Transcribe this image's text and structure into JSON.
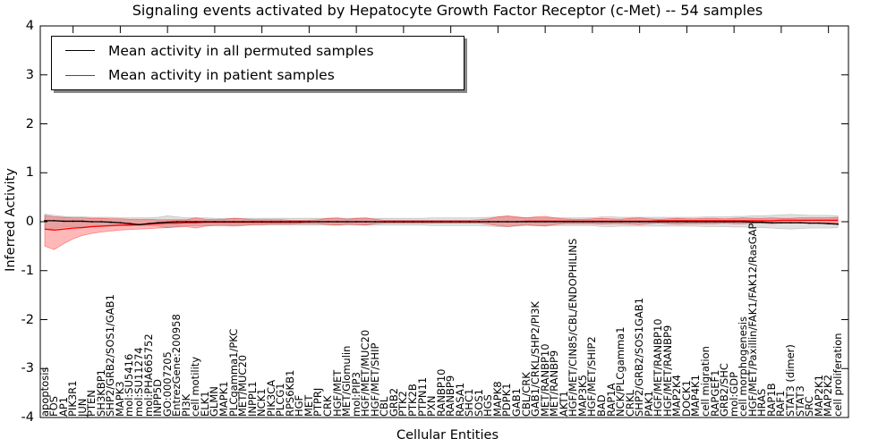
{
  "chart_data": {
    "type": "line",
    "title": "Signaling events activated by Hepatocyte Growth Factor Receptor (c-Met) -- 54 samples",
    "xlabel": "Cellular Entities",
    "ylabel": "Inferred Activity",
    "ylim": [
      -4,
      4
    ],
    "yticks": [
      -4,
      -3,
      -2,
      -1,
      0,
      1,
      2,
      3,
      4
    ],
    "grid": false,
    "legend_position": "upper left",
    "categories": [
      "apoptosis",
      "FOS",
      "AP1",
      "PIK3R1",
      "JUN",
      "PTEN",
      "SH3KBP1",
      "SHP2/GRB2/SOS1/GAB1",
      "MAPK3",
      "mol:SU5416",
      "mol:SU11274",
      "mol:PHA665752",
      "INPP5D",
      "GO:0007205",
      "EntrezGene:200958",
      "PI3K",
      "cell motility",
      "ELK1",
      "GLMN",
      "MAPK1",
      "PLCgamma1/PKC",
      "MET/MUC20",
      "INPPL1",
      "NCK1",
      "PIK3CA",
      "PLCG1",
      "RPS6KB1",
      "HGF",
      "MET",
      "PTPRJ",
      "CRK",
      "HGF/MET",
      "MET/Glomulin",
      "mol:PIP3",
      "HGF/MET/MUC20",
      "HGF/MET/SHIP",
      "CBL",
      "GRB2",
      "PTK2",
      "PTK2B",
      "PTPN11",
      "PXN",
      "RANBP10",
      "RANBP9",
      "RASA1",
      "SHC1",
      "SOS1",
      "HGS",
      "MAPK8",
      "PDPK1",
      "GAB1",
      "CBL/CRK",
      "GAB1/CRKL/SHP2/PI3K",
      "MET/RANBP10",
      "MET/RANBP9",
      "AKT1",
      "HGF/MET/CIN85/CBL/ENDOPHILINS",
      "MAP3K5",
      "HGF/MET/SHIP2",
      "BAD",
      "RAP1A",
      "NCK/PLCgamma1",
      "CRKL",
      "SHP2/GRB2/SOS1GAB1",
      "PAK1",
      "HGF/MET/RANBP10",
      "HGF/MET/RANBP9",
      "MAP2K4",
      "DOCK1",
      "MAP4K1",
      "cell migration",
      "RAPGEF1",
      "GRB2/SHC",
      "mol:GDP",
      "cell morphogenesis",
      "HGF/MET/Paxillin/FAK1/FAK12/RasGAP",
      "HRAS",
      "RAP1B",
      "RAF1",
      "STAT3 (dimer)",
      "STAT3",
      "SRC",
      "MAP2K1",
      "MAP2K2",
      "cell proliferation"
    ],
    "series": [
      {
        "name": "Mean activity in all permuted samples",
        "color": "#000000",
        "marker": "dot",
        "values": [
          0.02,
          0.02,
          0.01,
          0.01,
          0.01,
          0.0,
          0.0,
          -0.01,
          -0.02,
          -0.04,
          -0.06,
          -0.04,
          -0.02,
          -0.01,
          0.0,
          0.0,
          0.0,
          0.0,
          0.0,
          0.0,
          0.0,
          0.0,
          0.0,
          0.0,
          0.0,
          0.0,
          0.0,
          0.0,
          0.0,
          0.0,
          0.0,
          0.0,
          0.0,
          0.0,
          0.0,
          0.0,
          0.0,
          0.0,
          0.0,
          0.0,
          0.0,
          0.0,
          0.0,
          0.0,
          0.0,
          0.0,
          0.0,
          0.0,
          0.0,
          0.0,
          0.0,
          0.0,
          0.0,
          0.0,
          0.0,
          0.0,
          0.0,
          0.0,
          0.0,
          0.0,
          0.0,
          0.0,
          0.0,
          0.0,
          0.0,
          0.0,
          0.0,
          0.0,
          0.0,
          0.0,
          0.0,
          0.0,
          0.0,
          0.0,
          0.0,
          -0.01,
          -0.01,
          -0.02,
          -0.02,
          -0.02,
          -0.02,
          -0.03,
          -0.03,
          -0.04,
          -0.05
        ]
      },
      {
        "name": "Mean activity in patient samples",
        "color": "#ff0000",
        "marker": "none",
        "values": [
          -0.15,
          -0.17,
          -0.15,
          -0.13,
          -0.12,
          -0.1,
          -0.09,
          -0.08,
          -0.07,
          -0.07,
          -0.06,
          -0.05,
          -0.04,
          -0.03,
          -0.03,
          -0.02,
          -0.02,
          -0.01,
          -0.01,
          -0.01,
          -0.01,
          -0.01,
          -0.01,
          -0.01,
          -0.01,
          -0.01,
          -0.01,
          -0.01,
          0.0,
          0.0,
          0.0,
          0.0,
          0.0,
          0.0,
          0.0,
          0.0,
          0.0,
          0.0,
          0.0,
          0.0,
          0.0,
          0.0,
          0.0,
          0.0,
          0.0,
          0.0,
          0.0,
          0.0,
          0.0,
          0.0,
          0.0,
          0.01,
          0.01,
          0.01,
          0.01,
          0.01,
          0.01,
          0.01,
          0.01,
          0.01,
          0.01,
          0.01,
          0.01,
          0.01,
          0.01,
          0.02,
          0.02,
          0.02,
          0.02,
          0.02,
          0.02,
          0.02,
          0.02,
          0.02,
          0.02,
          0.02,
          0.02,
          0.02,
          0.03,
          0.03,
          0.03,
          0.03,
          0.03,
          0.03,
          0.03
        ]
      }
    ],
    "bands": [
      {
        "name": "permuted-samples-envelope",
        "color": "#909090",
        "opacity": 0.28,
        "upper": [
          0.16,
          0.13,
          0.11,
          0.1,
          0.1,
          0.09,
          0.09,
          0.09,
          0.08,
          0.08,
          0.08,
          0.08,
          0.09,
          0.12,
          0.1,
          0.08,
          0.08,
          0.08,
          0.07,
          0.07,
          0.07,
          0.07,
          0.07,
          0.07,
          0.07,
          0.07,
          0.07,
          0.07,
          0.07,
          0.07,
          0.07,
          0.07,
          0.07,
          0.07,
          0.07,
          0.07,
          0.07,
          0.07,
          0.07,
          0.07,
          0.07,
          0.08,
          0.08,
          0.08,
          0.08,
          0.08,
          0.08,
          0.09,
          0.1,
          0.1,
          0.09,
          0.08,
          0.08,
          0.08,
          0.08,
          0.08,
          0.08,
          0.08,
          0.08,
          0.1,
          0.1,
          0.09,
          0.09,
          0.09,
          0.09,
          0.09,
          0.09,
          0.09,
          0.09,
          0.09,
          0.1,
          0.1,
          0.1,
          0.11,
          0.11,
          0.12,
          0.12,
          0.13,
          0.14,
          0.15,
          0.14,
          0.13,
          0.13,
          0.13,
          0.12
        ],
        "lower": [
          -0.16,
          -0.13,
          -0.11,
          -0.1,
          -0.1,
          -0.09,
          -0.09,
          -0.09,
          -0.08,
          -0.08,
          -0.08,
          -0.08,
          -0.09,
          -0.12,
          -0.1,
          -0.08,
          -0.08,
          -0.08,
          -0.07,
          -0.07,
          -0.07,
          -0.07,
          -0.07,
          -0.07,
          -0.07,
          -0.07,
          -0.07,
          -0.07,
          -0.07,
          -0.07,
          -0.07,
          -0.07,
          -0.07,
          -0.07,
          -0.07,
          -0.07,
          -0.07,
          -0.07,
          -0.07,
          -0.07,
          -0.07,
          -0.08,
          -0.08,
          -0.08,
          -0.08,
          -0.08,
          -0.08,
          -0.09,
          -0.1,
          -0.1,
          -0.09,
          -0.08,
          -0.08,
          -0.08,
          -0.08,
          -0.08,
          -0.08,
          -0.08,
          -0.08,
          -0.1,
          -0.1,
          -0.09,
          -0.09,
          -0.09,
          -0.09,
          -0.09,
          -0.09,
          -0.09,
          -0.09,
          -0.09,
          -0.1,
          -0.1,
          -0.1,
          -0.11,
          -0.11,
          -0.12,
          -0.12,
          -0.13,
          -0.14,
          -0.15,
          -0.14,
          -0.13,
          -0.13,
          -0.13,
          -0.12
        ]
      },
      {
        "name": "patient-samples-envelope",
        "color": "#ff0000",
        "opacity": 0.28,
        "upper": [
          0.13,
          0.1,
          0.09,
          0.08,
          0.08,
          0.07,
          0.07,
          0.06,
          0.06,
          0.05,
          0.05,
          0.05,
          0.04,
          0.04,
          0.04,
          0.04,
          0.08,
          0.05,
          0.04,
          0.05,
          0.07,
          0.06,
          0.04,
          0.04,
          0.04,
          0.04,
          0.03,
          0.03,
          0.03,
          0.04,
          0.07,
          0.08,
          0.05,
          0.07,
          0.08,
          0.05,
          0.03,
          0.03,
          0.03,
          0.03,
          0.03,
          0.03,
          0.03,
          0.03,
          0.03,
          0.03,
          0.04,
          0.06,
          0.1,
          0.12,
          0.1,
          0.08,
          0.1,
          0.11,
          0.08,
          0.06,
          0.05,
          0.05,
          0.06,
          0.07,
          0.06,
          0.05,
          0.07,
          0.08,
          0.06,
          0.05,
          0.06,
          0.07,
          0.06,
          0.06,
          0.07,
          0.07,
          0.06,
          0.07,
          0.08,
          0.07,
          0.07,
          0.08,
          0.07,
          0.07,
          0.08,
          0.08,
          0.08,
          0.08,
          0.09
        ],
        "lower": [
          -0.5,
          -0.57,
          -0.45,
          -0.35,
          -0.28,
          -0.24,
          -0.21,
          -0.19,
          -0.17,
          -0.16,
          -0.15,
          -0.14,
          -0.13,
          -0.12,
          -0.11,
          -0.1,
          -0.13,
          -0.09,
          -0.08,
          -0.08,
          -0.09,
          -0.08,
          -0.06,
          -0.06,
          -0.05,
          -0.05,
          -0.05,
          -0.04,
          -0.04,
          -0.04,
          -0.06,
          -0.07,
          -0.05,
          -0.06,
          -0.07,
          -0.04,
          -0.03,
          -0.03,
          -0.03,
          -0.03,
          -0.03,
          -0.03,
          -0.03,
          -0.03,
          -0.03,
          -0.03,
          -0.03,
          -0.05,
          -0.08,
          -0.1,
          -0.08,
          -0.06,
          -0.08,
          -0.09,
          -0.06,
          -0.04,
          -0.04,
          -0.04,
          -0.04,
          -0.05,
          -0.04,
          -0.04,
          -0.05,
          -0.06,
          -0.04,
          -0.03,
          -0.04,
          -0.05,
          -0.04,
          -0.04,
          -0.04,
          -0.04,
          -0.03,
          -0.04,
          -0.04,
          -0.03,
          -0.03,
          -0.04,
          -0.03,
          -0.03,
          -0.03,
          -0.03,
          -0.03,
          -0.03,
          -0.03
        ]
      }
    ]
  }
}
